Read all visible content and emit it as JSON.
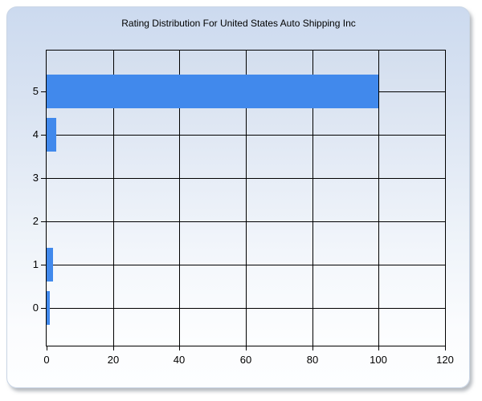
{
  "window": {
    "type": "chart-panel"
  },
  "chart_data": {
    "type": "bar",
    "orientation": "horizontal",
    "title": "Rating Distribution For United States Auto Shipping Inc",
    "categories": [
      "5",
      "4",
      "3",
      "2",
      "1",
      "0"
    ],
    "values": [
      100,
      3,
      0,
      0,
      2,
      1
    ],
    "xlabel": "",
    "ylabel": "",
    "xlim": [
      0,
      120
    ],
    "x_ticks": [
      0,
      20,
      40,
      60,
      80,
      100,
      120
    ],
    "grid": true,
    "legend": "none",
    "colors": {
      "bar": "#4189EC",
      "gridline": "#000000",
      "plot_border": "#000000",
      "panel_top": "#ccdaef",
      "panel_bottom": "#fdfeff",
      "text": "#000000"
    }
  }
}
